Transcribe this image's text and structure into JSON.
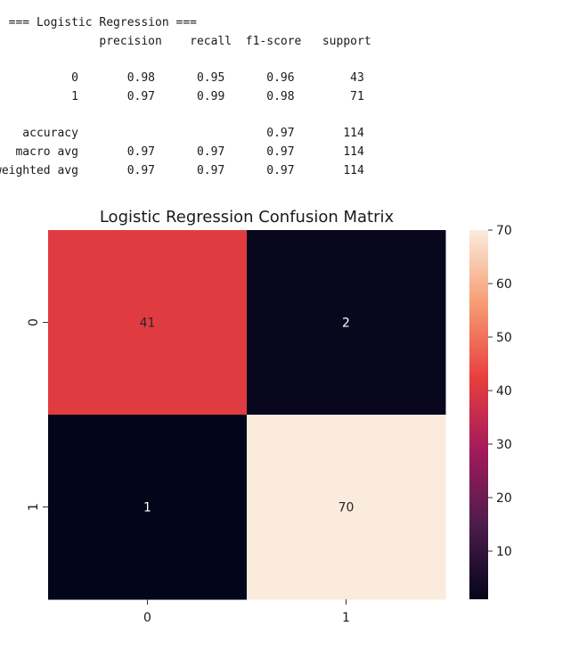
{
  "output": {
    "text": "  === Logistic Regression ===\n               precision    recall  f1-score   support\n\n           0       0.98      0.95      0.96        43\n           1       0.97      0.99      0.98        71\n\n    accuracy                           0.97       114\n   macro avg       0.97      0.97      0.97       114\nweighted avg       0.97      0.97      0.97       114"
  },
  "chart_data": {
    "type": "heatmap",
    "title": "Logistic Regression Confusion Matrix",
    "xlabel": "",
    "ylabel": "",
    "x_categories": [
      "0",
      "1"
    ],
    "y_categories": [
      "0",
      "1"
    ],
    "values": [
      [
        41,
        2
      ],
      [
        1,
        70
      ]
    ],
    "colorbar": {
      "ticks": [
        10,
        20,
        30,
        40,
        50,
        60,
        70
      ],
      "range": [
        1,
        70
      ],
      "colormap": "rocket",
      "stops": [
        "#03051a",
        "#4c1d4b",
        "#a11a5b",
        "#e83f3f",
        "#f69c73",
        "#faebdd"
      ]
    },
    "annotation_colors": {
      "on_dark": "#ffffff",
      "on_light": "#262626"
    }
  }
}
